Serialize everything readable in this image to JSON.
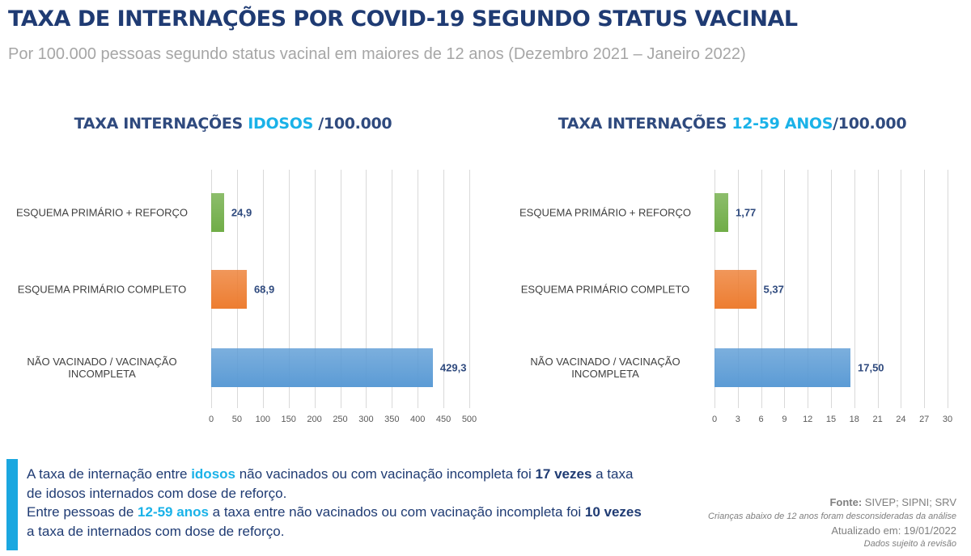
{
  "header": {
    "title": "TAXA DE INTERNAÇÕES POR COVID-19 SEGUNDO STATUS VACINAL",
    "subtitle": "Por 100.000 pessoas segundo status vacinal em maiores de 12 anos (Dezembro 2021 – Janeiro 2022)"
  },
  "chart_data": [
    {
      "type": "bar",
      "orientation": "horizontal",
      "title": [
        {
          "text": "TAXA INTERNAÇÕES "
        },
        {
          "text": "IDOSOS",
          "style": "highlight"
        },
        {
          "text": " /100.000"
        }
      ],
      "categories": [
        "ESQUEMA PRIMÁRIO + REFORÇO",
        "ESQUEMA PRIMÁRIO COMPLETO",
        "NÃO VACINADO / VACINAÇÃO INCOMPLETA"
      ],
      "values": [
        24.9,
        68.9,
        429.3
      ],
      "value_labels": [
        "24,9",
        "68,9",
        "429,3"
      ],
      "colors": [
        "#70ad47",
        "#ed7d31",
        "#5b9bd5"
      ],
      "xlim": [
        0,
        500
      ],
      "xticks": [
        0,
        50,
        100,
        150,
        200,
        250,
        300,
        350,
        400,
        450,
        500
      ],
      "grid": true
    },
    {
      "type": "bar",
      "orientation": "horizontal",
      "title": [
        {
          "text": "TAXA INTERNAÇÕES "
        },
        {
          "text": "12-59 ANOS",
          "style": "highlight"
        },
        {
          "text": "/100.000"
        }
      ],
      "categories": [
        "ESQUEMA PRIMÁRIO + REFORÇO",
        "ESQUEMA PRIMÁRIO COMPLETO",
        "NÃO VACINADO / VACINAÇÃO INCOMPLETA"
      ],
      "values": [
        1.77,
        5.37,
        17.5
      ],
      "value_labels": [
        "1,77",
        "5,37",
        "17,50"
      ],
      "colors": [
        "#70ad47",
        "#ed7d31",
        "#5b9bd5"
      ],
      "xlim": [
        0,
        30
      ],
      "xticks": [
        0,
        3,
        6,
        9,
        12,
        15,
        18,
        21,
        24,
        27,
        30
      ],
      "grid": true
    }
  ],
  "note": {
    "paragraphs": [
      [
        {
          "text": "A taxa de internação entre "
        },
        {
          "text": "idosos",
          "style": "highlight"
        },
        {
          "text": " não vacinados ou com vacinação incompleta foi "
        },
        {
          "text": "17 vezes",
          "style": "bold"
        },
        {
          "text": " a taxa de idosos internados com dose de reforço."
        }
      ],
      [
        {
          "text": "Entre pessoas de "
        },
        {
          "text": "12-59 anos",
          "style": "highlight"
        },
        {
          "text": " a taxa entre não vacinados ou com vacinação incompleta foi "
        },
        {
          "text": "10 vezes",
          "style": "bold"
        },
        {
          "text": " a taxa de internados com dose de reforço."
        }
      ]
    ]
  },
  "source": {
    "label": "Fonte:",
    "text": " SIVEP; SIPNI; SRV",
    "exclusion": "Crianças abaixo de 12 anos foram desconsideradas da análise",
    "updated": "Atualizado em: 19/01/2022",
    "disclaimer": "Dados sujeito à revisão"
  }
}
